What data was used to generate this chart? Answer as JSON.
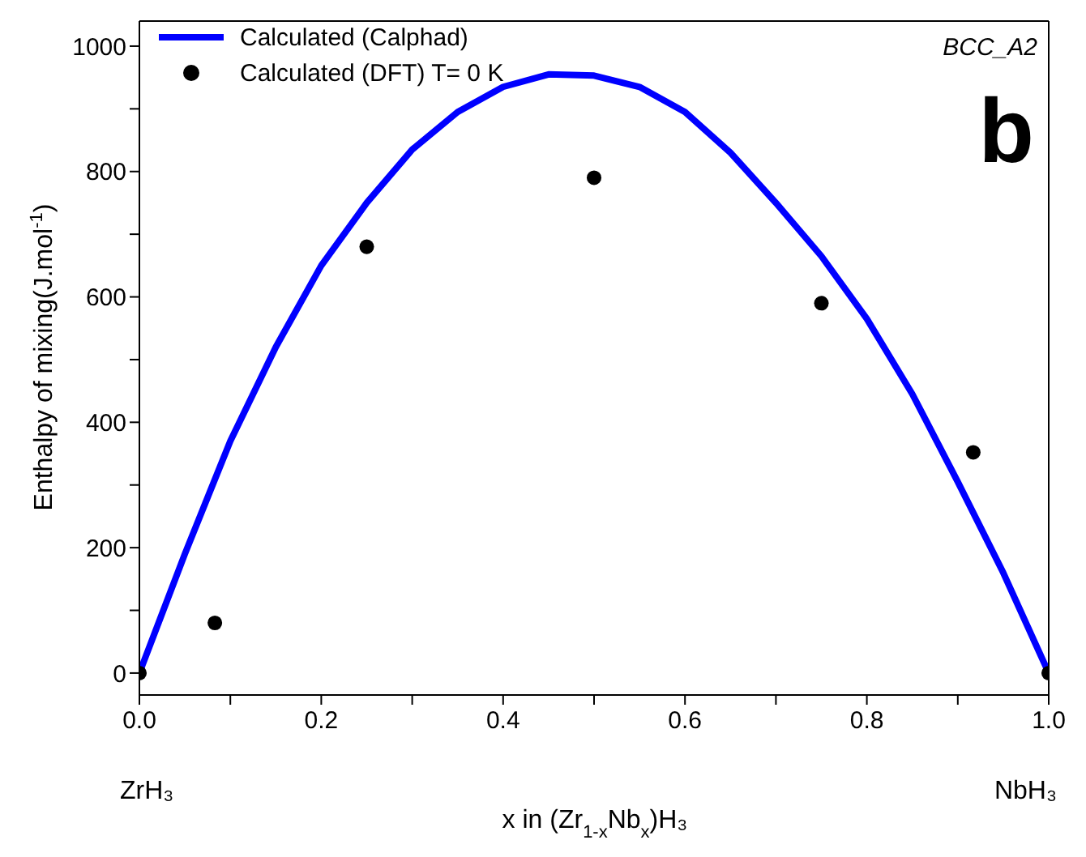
{
  "chart_data": {
    "type": "line",
    "xlabel": "x in (Zr$_{1-x}$Nb$_{x}$)H₃",
    "ylabel": "Enthalpy of mixing(J.mol$^{-1}$)",
    "annotations": [
      "BCC_A2",
      "b",
      "ZrH₃",
      "NbH₃"
    ],
    "xlim": [
      0,
      1
    ],
    "ylim": [
      -35,
      1040
    ],
    "xticks": [
      {
        "value": 0,
        "label": "0.0"
      },
      {
        "value": 0.1,
        "label": null
      },
      {
        "value": 0.2,
        "label": "0.2"
      },
      {
        "value": 0.3,
        "label": null
      },
      {
        "value": 0.4,
        "label": "0.4"
      },
      {
        "value": 0.5,
        "label": null
      },
      {
        "value": 0.6,
        "label": "0.6"
      },
      {
        "value": 0.7,
        "label": null
      },
      {
        "value": 0.8,
        "label": "0.8"
      },
      {
        "value": 0.9,
        "label": null
      },
      {
        "value": 1,
        "label": "1.0"
      }
    ],
    "yticks": [
      0,
      {
        "value": 100,
        "label": null
      },
      200,
      {
        "value": 300,
        "label": null
      },
      400,
      {
        "value": 500,
        "label": null
      },
      600,
      {
        "value": 700,
        "label": null
      },
      800,
      {
        "value": 900,
        "label": null
      },
      1000
    ],
    "legend": "top left",
    "grid": false,
    "series": [
      {
        "name": "Calculated (Calphad)",
        "color": "#0000ff",
        "marker": "none",
        "line_style": "solid",
        "x": [
          0,
          0.05,
          0.1,
          0.15,
          0.2,
          0.25,
          0.3,
          0.35,
          0.4,
          0.45,
          0.5,
          0.55,
          0.6,
          0.65,
          0.7,
          0.75,
          0.8,
          0.85,
          0.9,
          0.95,
          1
        ],
        "values": [
          0,
          190,
          370,
          520,
          650,
          750,
          835,
          895,
          935,
          955,
          953,
          935,
          895,
          830,
          750,
          665,
          565,
          445,
          305,
          160,
          0
        ]
      },
      {
        "name": "Calculated (DFT) T= 0 K",
        "type": "scatter",
        "color": "#000000",
        "marker": "circle",
        "x": [
          0,
          0.083,
          0.25,
          0.5,
          0.75,
          0.917,
          1
        ],
        "values": [
          0,
          80,
          680,
          790,
          590,
          352,
          0
        ]
      }
    ]
  }
}
